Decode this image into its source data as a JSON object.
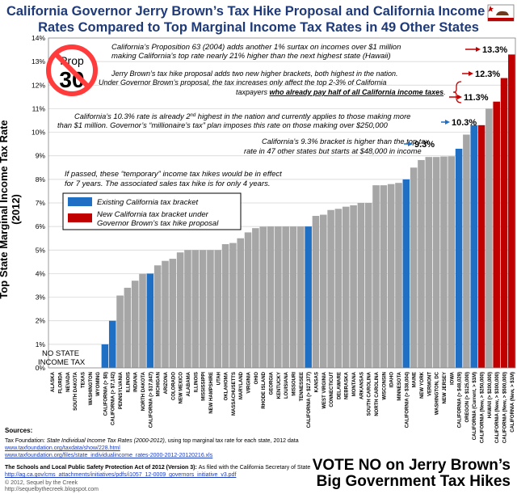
{
  "title_line1": "California Governor Jerry Brown’s Tax Hike Proposal and California Income Tax",
  "title_line2": "Rates Compared to Top Marginal Income Tax Rates in 49 Other States",
  "prop_badge": {
    "line1": "Prop",
    "line2": "30"
  },
  "annotations": {
    "prop63_l1": "California’s Proposition 63 (2004) adds another 1% surtax on incomes over $1 million",
    "prop63_l2": "making California’s top rate nearly 21% higher than the next highest state (Hawaii)",
    "brackets_l1": "Jerry Brown’s tax hike proposal adds two new higher brackets, both highest in the nation.",
    "brackets_l2": "Under Governor Brown’s proposal, the tax increases only affect the top 2-3% of California",
    "brackets_l3a": "taxpayers ",
    "brackets_l3b": "who already pay half of all California income taxes",
    "brackets_l3c": ".",
    "second_l1": "California’s 10.3% rate is already 2",
    "second_sup": "nd",
    "second_l1b": " highest in the nation and currently applies to those making more",
    "second_l2": "than $1 million.  Governor’s “millionaire’s tax” plan imposes this rate on those making over $250,000",
    "nine_l1": "California’s 9.3% bracket is higher than the top tax",
    "nine_l2": "rate in 47 other states but starts at $48,000 in income",
    "temp_l1": "If passed, these “temporary” income tax hikes would be in effect",
    "temp_l2": "for 7 years.  The associated sales tax hike is for only 4 years.",
    "no_state_l1": "NO STATE",
    "no_state_l2": "INCOME TAX",
    "v133": "13.3%",
    "v123": "12.3%",
    "v113": "11.3%",
    "v103": "10.3%",
    "v93": "9.3%"
  },
  "legend": {
    "existing": "Existing California tax bracket",
    "new_l1": "New California tax bracket under",
    "new_l2": "Governor Brown’s tax hike proposal"
  },
  "colors": {
    "gray": "#a6a6a6",
    "blue": "#1f6fc4",
    "red": "#c00000",
    "title": "#1f3a78",
    "grid": "#d0d0d0"
  },
  "footer": {
    "sources": "Sources:",
    "tf_a": "Tax Foundation: ",
    "tf_b": "State Individual Income Tax Rates (2000-2012)",
    "tf_c": ", using top marginal tax rate for each state, 2012 data",
    "tf_link1": "www.taxfoundation.org/taxdata/show/228.html",
    "tf_link2": "www.taxfoundation.org/files/state_individualincome_rates-2000-2012-20120216.xls",
    "act_a": "The Schools and Local Public Safety Protection Act of 2012 (Version 3): ",
    "act_b": "As filed with the California Secretary of State",
    "act_link": "http://ag.ca.gov/cms_attachments/initiatives/pdfs/i1057_12-0009_governors_initiative_v3.pdf",
    "copyright_l1": "© 2012, Sequel by the Creek",
    "copyright_l2": "http://sequelbythecreek.blogspot.com"
  },
  "vote_l1": "VOTE NO on Jerry Brown’s",
  "vote_l2": "Big Government Tax Hikes",
  "chart_data": {
    "type": "bar",
    "ylabel": "Top State Marginal Income Tax Rate (2012)",
    "ylim": [
      0,
      14
    ],
    "yticks": [
      "0%",
      "1%",
      "2%",
      "3%",
      "4%",
      "5%",
      "6%",
      "7%",
      "8%",
      "9%",
      "10%",
      "11%",
      "12%",
      "13%",
      "14%"
    ],
    "grid": true,
    "legend_position": "left-middle",
    "categories": [
      "ALASKA",
      "FLORIDA",
      "NEVADA",
      "SOUTH DAKOTA",
      "TEXAS",
      "WASHINGTON",
      "WYOMING",
      "CALIFORNIA (> $0)",
      "CALIFORNIA (> $7,142)",
      "PENNSYLVANIA",
      "ILLINOIS",
      "INDIANA",
      "NORTH DAKOTA",
      "CALIFORNIA (> $17,847)",
      "MICHIGAN",
      "ARIZONA",
      "COLORADO",
      "NEW MEXICO",
      "ALABAMA",
      "ILLINOIS",
      "MISSISSIPPI",
      "NEW HAMPSHIRE",
      "UTAH",
      "OKLAHOMA",
      "MASSACHUSETTS",
      "MARYLAND",
      "VIRGINIA",
      "OHIO",
      "RHODE ISLAND",
      "GEORGIA",
      "KENTUCKY",
      "LOUISIANA",
      "MISSOURI",
      "TENNESSEE",
      "CALIFORNIA (> $27,377)",
      "KANSAS",
      "WEST VIRGINIA",
      "CONNECTICUT",
      "DELAWARE",
      "NEBRASKA",
      "MONTANA",
      "ARKANSAS",
      "SOUTH CAROLINA",
      "NORTH CAROLINA",
      "WISCONSIN",
      "IDAHO",
      "MINNESOTA",
      "CALIFORNIA (> $38,004)",
      "MAINE",
      "NEW YORK",
      "VERMONT",
      "WASHINGTON, DC",
      "NEW JERSEY",
      "IOWA",
      "CALIFORNIA (> $48,029)",
      "OREGON (> $125,000)",
      "CALIFORNIA (Current, > $1M)",
      "CALIFORNIA (New, > $250,000)",
      "HAWAII (> $200,000)",
      "CALIFORNIA (New, > $300,000)",
      "CALIFORNIA (New, > $500,000)",
      "CALIFORNIA (New, > $1M)"
    ],
    "values": [
      0,
      0,
      0,
      0,
      0,
      0,
      0,
      1,
      2,
      3.07,
      3.4,
      3.7,
      3.99,
      4,
      4.35,
      4.54,
      4.63,
      4.9,
      5,
      5,
      5,
      5,
      5,
      5.25,
      5.3,
      5.5,
      5.75,
      5.93,
      5.99,
      6,
      6,
      6,
      6,
      6,
      6,
      6.45,
      6.5,
      6.7,
      6.75,
      6.84,
      6.9,
      7,
      7,
      7.75,
      7.75,
      7.8,
      7.85,
      8,
      8.5,
      8.82,
      8.95,
      8.95,
      8.97,
      8.98,
      9.3,
      9.9,
      10.3,
      10.3,
      11,
      11.3,
      12.3,
      13.3
    ],
    "bar_colors": [
      "gray",
      "gray",
      "gray",
      "gray",
      "gray",
      "gray",
      "gray",
      "blue",
      "blue",
      "gray",
      "gray",
      "gray",
      "gray",
      "blue",
      "gray",
      "gray",
      "gray",
      "gray",
      "gray",
      "gray",
      "gray",
      "gray",
      "gray",
      "gray",
      "gray",
      "gray",
      "gray",
      "gray",
      "gray",
      "gray",
      "gray",
      "gray",
      "gray",
      "gray",
      "blue",
      "gray",
      "gray",
      "gray",
      "gray",
      "gray",
      "gray",
      "gray",
      "gray",
      "gray",
      "gray",
      "gray",
      "gray",
      "blue",
      "gray",
      "gray",
      "gray",
      "gray",
      "gray",
      "gray",
      "blue",
      "gray",
      "blue",
      "red",
      "gray",
      "red",
      "red",
      "red"
    ]
  }
}
